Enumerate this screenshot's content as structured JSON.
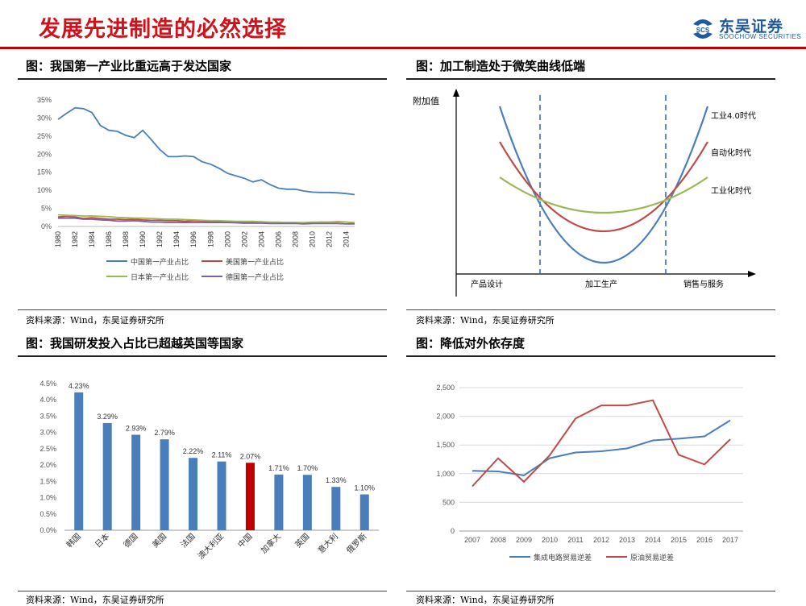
{
  "page_title": "发展先进制造的必然选择",
  "brand": {
    "name_cn": "东吴证券",
    "name_en": "SOOCHOW SECURITIES",
    "logo_text": "SCS",
    "color": "#1f5aa0"
  },
  "panels": {
    "p1": {
      "title": "图：我国第一产业比重远高于发达国家",
      "source": "资料来源：Wind，东吴证券研究所"
    },
    "p2": {
      "title": "图：加工制造处于微笑曲线低端",
      "source": "资料来源：Wind，东吴证券研究所"
    },
    "p3": {
      "title": "图：我国研发投入占比已超越英国等国家",
      "source": "资料来源：Wind，东吴证券研究所"
    },
    "p4": {
      "title": "图：降低对外依存度",
      "source": "资料来源：Wind，东吴证券研究所"
    }
  },
  "chart_data": [
    {
      "type": "line",
      "x": [
        1980,
        1981,
        1982,
        1983,
        1984,
        1985,
        1986,
        1987,
        1988,
        1989,
        1990,
        1991,
        1992,
        1993,
        1994,
        1995,
        1996,
        1997,
        1998,
        1999,
        2000,
        2001,
        2002,
        2003,
        2004,
        2005,
        2006,
        2007,
        2008,
        2009,
        2010,
        2011,
        2012,
        2013,
        2014,
        2015
      ],
      "x_tick_labels": [
        "1980",
        "1982",
        "1984",
        "1986",
        "1988",
        "1990",
        "1992",
        "1994",
        "1996",
        "1998",
        "2000",
        "2002",
        "2004",
        "2006",
        "2008",
        "2010",
        "2012",
        "2014"
      ],
      "y_tick_labels": [
        "0%",
        "5%",
        "10%",
        "15%",
        "20%",
        "25%",
        "30%",
        "35%"
      ],
      "ylim": [
        0,
        35
      ],
      "legend_position": "bottom",
      "series": [
        {
          "name": "中国第一产业占比",
          "color": "#4a7ebb",
          "values": [
            29.6,
            31.3,
            32.8,
            32.6,
            31.5,
            27.9,
            26.6,
            26.3,
            25.2,
            24.6,
            26.6,
            24.0,
            21.3,
            19.3,
            19.3,
            19.5,
            19.3,
            17.9,
            17.2,
            16.1,
            14.7,
            14.0,
            13.3,
            12.3,
            12.9,
            11.6,
            10.6,
            10.3,
            10.3,
            9.8,
            9.5,
            9.4,
            9.4,
            9.3,
            9.1,
            8.8
          ]
        },
        {
          "name": "美国第一产业占比",
          "color": "#be4b48",
          "values": [
            2.6,
            2.8,
            2.6,
            2.2,
            2.4,
            2.2,
            2.0,
            2.0,
            1.9,
            2.0,
            1.8,
            1.7,
            1.7,
            1.6,
            1.6,
            1.4,
            1.6,
            1.5,
            1.4,
            1.3,
            1.2,
            1.2,
            1.0,
            1.2,
            1.3,
            1.1,
            1.0,
            1.1,
            1.1,
            1.0,
            1.1,
            1.2,
            1.2,
            1.3,
            1.2,
            1.0
          ]
        },
        {
          "name": "日本第一产业占比",
          "color": "#98b954",
          "values": [
            3.2,
            3.1,
            3.0,
            2.9,
            2.9,
            2.8,
            2.7,
            2.5,
            2.4,
            2.3,
            2.3,
            2.2,
            2.1,
            2.0,
            2.0,
            1.9,
            1.8,
            1.7,
            1.6,
            1.6,
            1.5,
            1.4,
            1.4,
            1.4,
            1.3,
            1.2,
            1.2,
            1.1,
            1.1,
            1.1,
            1.2,
            1.2,
            1.2,
            1.2,
            1.2,
            1.1
          ]
        },
        {
          "name": "德国第一产业占比",
          "color": "#7d60a0",
          "values": [
            2.3,
            2.3,
            2.3,
            2.0,
            2.0,
            1.8,
            1.7,
            1.5,
            1.5,
            1.6,
            1.4,
            1.2,
            1.2,
            1.1,
            1.1,
            1.1,
            1.1,
            1.1,
            1.1,
            1.1,
            1.1,
            1.0,
            0.9,
            0.9,
            0.9,
            0.8,
            0.8,
            0.8,
            0.8,
            0.7,
            0.8,
            0.8,
            0.8,
            0.8,
            0.7,
            0.7
          ]
        }
      ]
    },
    {
      "type": "line",
      "ylabel": "附加值",
      "x_tick_labels": [
        "产品设计",
        "加工生产",
        "销售与服务"
      ],
      "grid": false,
      "legend_position": "right",
      "series": [
        {
          "name": "工业4.0时代",
          "color": "#4a7ebb"
        },
        {
          "name": "自动化时代",
          "color": "#be4b48"
        },
        {
          "name": "工业化时代",
          "color": "#98b954"
        }
      ]
    },
    {
      "type": "bar",
      "categories": [
        "韩国",
        "日本",
        "德国",
        "美国",
        "法国",
        "澳大利亚",
        "中国",
        "加拿大",
        "英国",
        "意大利",
        "俄罗斯"
      ],
      "values": [
        4.23,
        3.29,
        2.93,
        2.79,
        2.22,
        2.11,
        2.07,
        1.71,
        1.7,
        1.33,
        1.1
      ],
      "data_labels": [
        "4.23%",
        "3.29%",
        "2.93%",
        "2.79%",
        "2.22%",
        "2.11%",
        "2.07%",
        "1.71%",
        "1.70%",
        "1.33%",
        "1.10%"
      ],
      "highlight": "中国",
      "bar_color": "#4a7ebb",
      "highlight_color": "#c00000",
      "y_tick_labels": [
        "0.0%",
        "0.5%",
        "1.0%",
        "1.5%",
        "2.0%",
        "2.5%",
        "3.0%",
        "3.5%",
        "4.0%",
        "4.5%"
      ],
      "ylim": [
        0,
        4.5
      ]
    },
    {
      "type": "line",
      "x": [
        "2007",
        "2008",
        "2009",
        "2010",
        "2011",
        "2012",
        "2013",
        "2014",
        "2015",
        "2016",
        "2017"
      ],
      "y_tick_labels": [
        "0",
        "500",
        "1,000",
        "1,500",
        "2,000",
        "2,500"
      ],
      "ylim": [
        0,
        2500
      ],
      "grid": true,
      "legend_position": "bottom",
      "series": [
        {
          "name": "集成电路贸易逆差",
          "color": "#4a7ebb",
          "values": [
            1050,
            1040,
            970,
            1270,
            1370,
            1390,
            1440,
            1580,
            1610,
            1650,
            1930
          ]
        },
        {
          "name": "原油贸易逆差",
          "color": "#be4b48",
          "values": [
            780,
            1270,
            860,
            1320,
            1960,
            2190,
            2190,
            2280,
            1330,
            1160,
            1600
          ]
        }
      ]
    }
  ]
}
